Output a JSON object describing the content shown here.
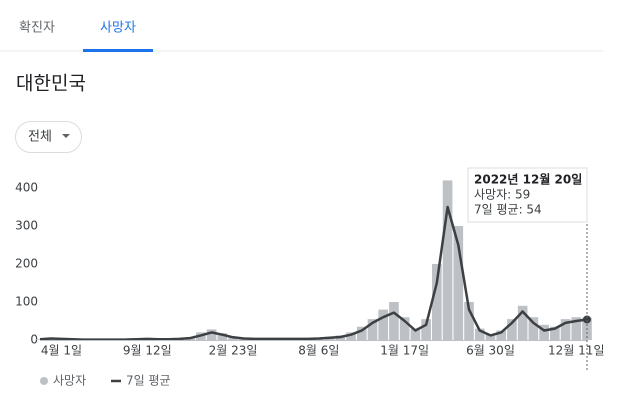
{
  "tabs": [
    "확진자",
    "사망자"
  ],
  "region": "대한민국",
  "filter": "전체",
  "tooltip": {
    "title": "2022년 12월 20일",
    "lines": [
      "사망자: 59",
      "7일 평균: 54"
    ]
  },
  "chart_data": {
    "type": "bar_line",
    "categories": [
      null,
      null,
      "4월 1일",
      null,
      null,
      null,
      null,
      null,
      null,
      null,
      "9월 12일",
      null,
      null,
      null,
      null,
      null,
      null,
      null,
      "2월 23일",
      null,
      null,
      null,
      null,
      null,
      null,
      null,
      "8월 6일",
      null,
      null,
      null,
      null,
      null,
      null,
      null,
      "1월 17일",
      null,
      null,
      null,
      null,
      null,
      null,
      null,
      "6월 30일",
      null,
      null,
      null,
      null,
      null,
      null,
      null,
      "12월 11일",
      null
    ],
    "series": [
      {
        "name": "사망자",
        "color": "#bdc1c6",
        "values": [
          2,
          5,
          4,
          2,
          1,
          1,
          1,
          1,
          2,
          3,
          3,
          2,
          2,
          4,
          8,
          20,
          28,
          18,
          8,
          5,
          3,
          3,
          3,
          3,
          4,
          4,
          5,
          8,
          12,
          20,
          35,
          55,
          80,
          100,
          60,
          30,
          55,
          200,
          420,
          300,
          100,
          30,
          15,
          25,
          55,
          90,
          60,
          40,
          35,
          55,
          60,
          59
        ]
      },
      {
        "name": "7일 평균",
        "color": "#3c4043",
        "values": [
          2,
          4,
          3,
          2,
          1,
          1,
          1,
          1,
          1,
          2,
          3,
          2,
          2,
          3,
          5,
          12,
          20,
          14,
          7,
          4,
          3,
          3,
          3,
          3,
          3,
          3,
          4,
          6,
          8,
          14,
          25,
          45,
          60,
          72,
          50,
          25,
          40,
          150,
          350,
          250,
          80,
          25,
          12,
          20,
          45,
          75,
          45,
          25,
          30,
          45,
          50,
          54
        ]
      }
    ],
    "ylim": [
      0,
      460
    ],
    "yticks": [
      0,
      100,
      200,
      300,
      400
    ]
  }
}
